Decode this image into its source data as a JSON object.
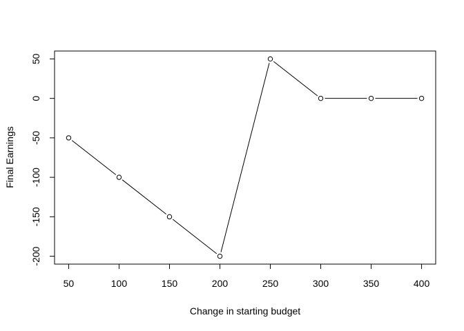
{
  "chart_data": {
    "type": "line",
    "title": "",
    "xlabel": "Change in starting budget",
    "ylabel": "Final Earnings",
    "x": [
      50,
      100,
      150,
      200,
      250,
      300,
      350,
      400
    ],
    "series": [
      {
        "values": [
          -50,
          -100,
          -150,
          -200,
          50,
          0,
          0,
          0
        ]
      }
    ],
    "x_ticks": [
      50,
      100,
      150,
      200,
      250,
      300,
      350,
      400
    ],
    "y_ticks": [
      -200,
      -150,
      -100,
      -50,
      0,
      50
    ],
    "xlim": [
      36,
      414
    ],
    "ylim": [
      -210,
      60
    ],
    "line_style": "lines with open circle markers, gaps at points",
    "grid": false,
    "legend": "none",
    "colors": {
      "line": "#000000",
      "marker_fill": "#ffffff",
      "marker_stroke": "#000000",
      "box": "#000000"
    }
  }
}
